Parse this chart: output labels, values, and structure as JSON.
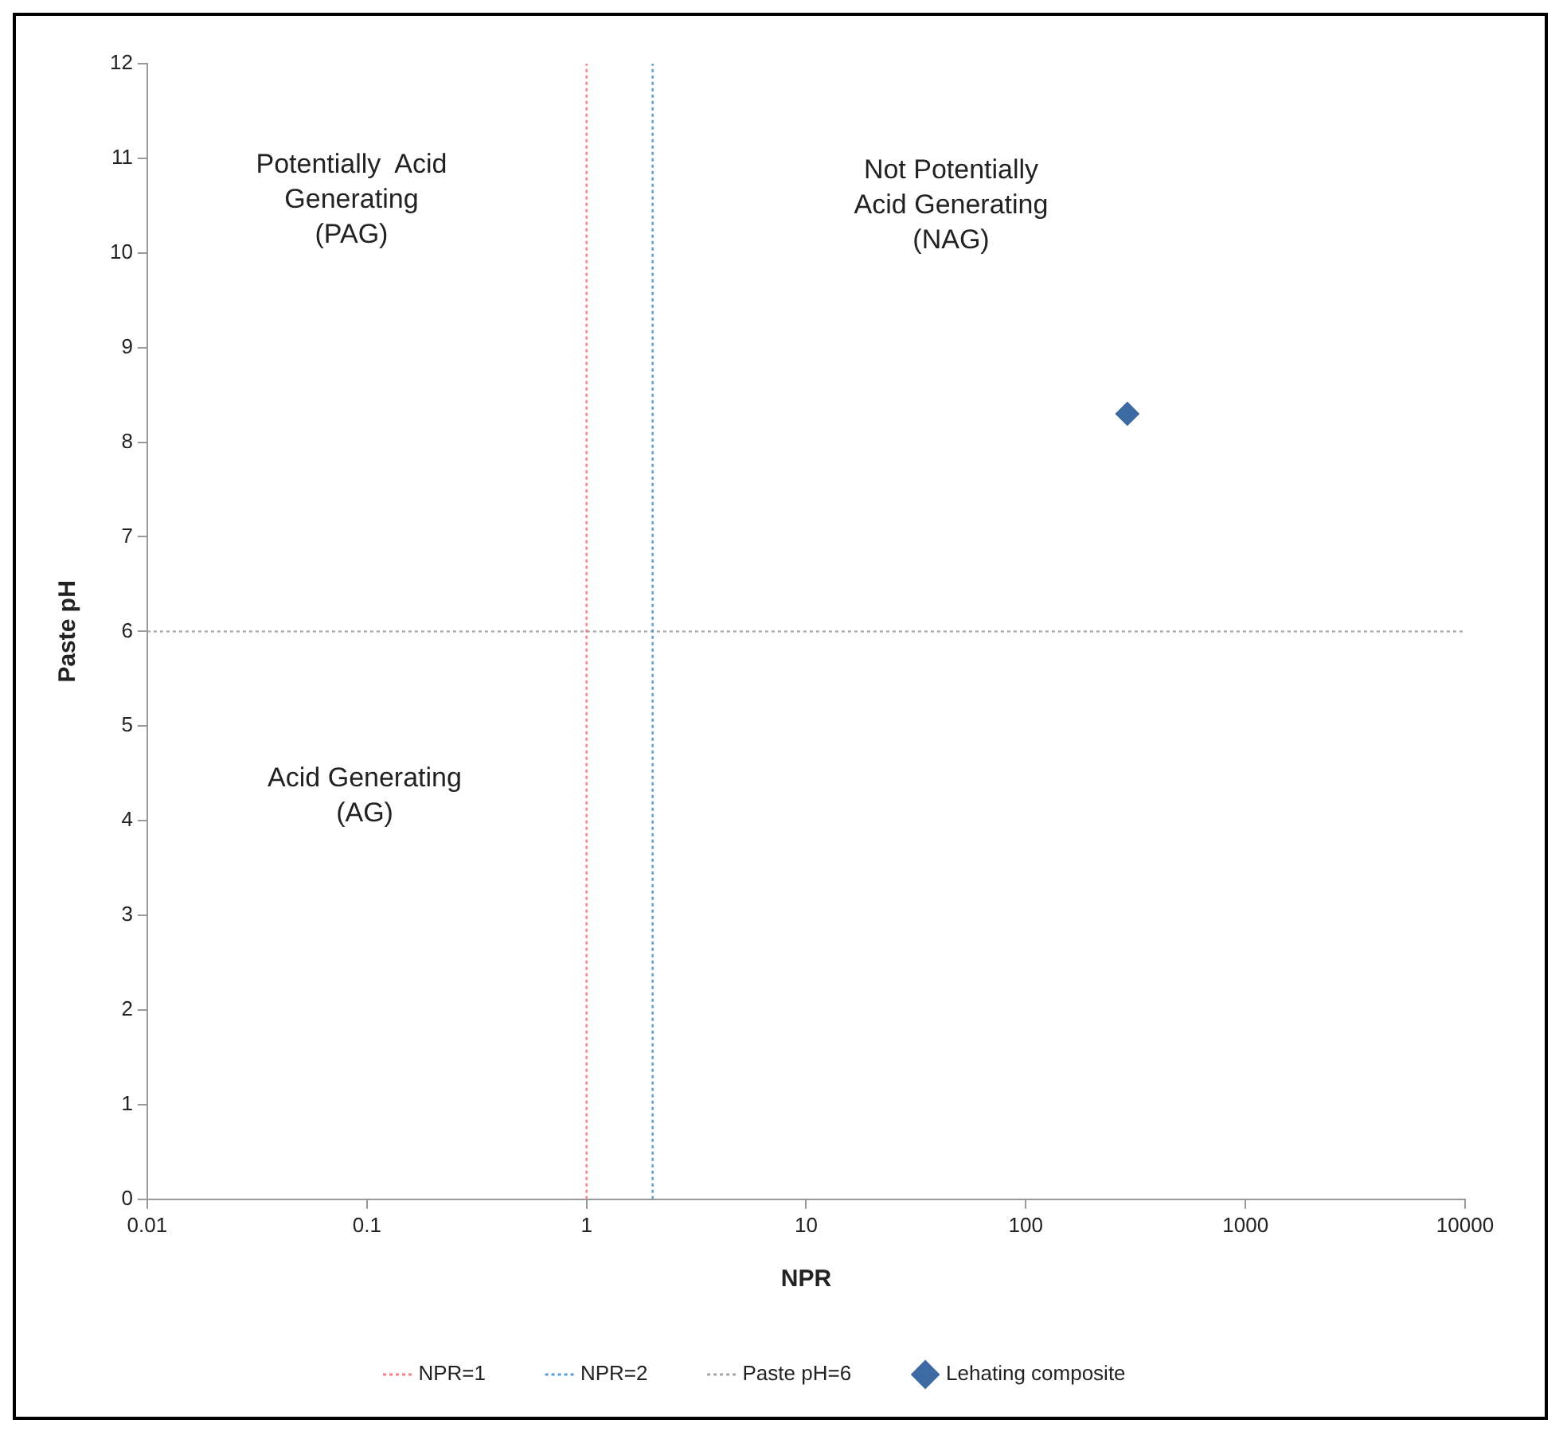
{
  "chart_data": {
    "type": "scatter",
    "xlabel": "NPR",
    "ylabel": "Paste pH",
    "log": "x",
    "xlim": [
      0.01,
      10000
    ],
    "xticks": [
      0.01,
      0.1,
      1,
      10,
      100,
      1000,
      10000
    ],
    "ylim": [
      0,
      12
    ],
    "yticks": [
      0,
      1,
      2,
      3,
      4,
      5,
      6,
      7,
      8,
      9,
      10,
      11,
      12
    ],
    "grid": false,
    "legend": "bottom",
    "series": [
      {
        "name": "NPR=1",
        "type": "line",
        "color": "#ff7c80",
        "line_style": "dotted",
        "marker": "none",
        "x": [
          1,
          1
        ],
        "values": [
          0,
          12
        ]
      },
      {
        "name": "NPR=2",
        "type": "line",
        "color": "#5b9bd5",
        "line_style": "dotted",
        "marker": "none",
        "x": [
          2,
          2
        ],
        "values": [
          0,
          12
        ]
      },
      {
        "name": "Paste pH=6",
        "type": "line",
        "color": "#a6a6a6",
        "line_style": "dotted",
        "marker": "none",
        "x": [
          0.01,
          10000
        ],
        "values": [
          6,
          6
        ]
      },
      {
        "name": "Lehating composite",
        "color": "#3d6aa3",
        "marker": "diamond",
        "x": [
          290
        ],
        "values": [
          8.3
        ]
      }
    ],
    "annotations": [
      "Potentially  Acid\nGenerating\n(PAG)",
      "Not Potentially\nAcid Generating\n(NAG)",
      "Acid Generating\n(AG)"
    ]
  }
}
